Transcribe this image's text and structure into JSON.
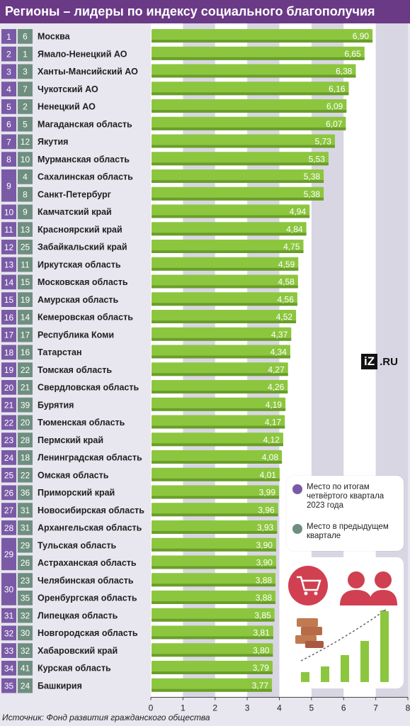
{
  "title": "Регионы – лидеры по индексу социального благополучия",
  "source": "Источник: Фонд развития гражданского общества",
  "logo": {
    "mark": "iZ",
    "suffix": ".RU"
  },
  "legend": [
    {
      "label": "Место по итогам четвёртого квартала 2023 года",
      "color": "#7a5aa6"
    },
    {
      "label": "Место в предыдущем квартале",
      "color": "#6e8f7f"
    }
  ],
  "colors": {
    "bar": "#8cc63f",
    "bar_dark": "#6a9e2a",
    "rank_current": "#7a5aa6",
    "rank_prev": "#6e8f7f",
    "band": "#d9d6e3",
    "title_bg": "#6b3a86"
  },
  "illustration": {
    "icons": [
      "shopping-cart-icon",
      "man-icon",
      "woman-icon",
      "money-stack-icon",
      "growth-bars-icon"
    ]
  },
  "chart_data": {
    "type": "bar",
    "orientation": "horizontal",
    "title": "Регионы – лидеры по индексу социального благополучия",
    "xlim": [
      0,
      8
    ],
    "xticks": [
      "0",
      "1",
      "2",
      "3",
      "4",
      "5",
      "6",
      "7",
      "8"
    ],
    "rows": [
      {
        "rank": "1",
        "prev": "6",
        "region": "Москва",
        "value": 6.9,
        "label": "6,90"
      },
      {
        "rank": "2",
        "prev": "1",
        "region": "Ямало-Ненецкий АО",
        "value": 6.65,
        "label": "6,65"
      },
      {
        "rank": "3",
        "prev": "3",
        "region": "Ханты-Мансийский АО",
        "value": 6.38,
        "label": "6,38"
      },
      {
        "rank": "4",
        "prev": "7",
        "region": "Чукотский АО",
        "value": 6.16,
        "label": "6,16"
      },
      {
        "rank": "5",
        "prev": "2",
        "region": "Ненецкий АО",
        "value": 6.09,
        "label": "6,09"
      },
      {
        "rank": "6",
        "prev": "5",
        "region": "Магаданская область",
        "value": 6.07,
        "label": "6,07"
      },
      {
        "rank": "7",
        "prev": "12",
        "region": "Якутия",
        "value": 5.73,
        "label": "5,73"
      },
      {
        "rank": "8",
        "prev": "10",
        "region": "Мурманская область",
        "value": 5.53,
        "label": "5,53"
      },
      {
        "rank": "9",
        "prev": "4",
        "region": "Сахалинская область",
        "value": 5.38,
        "label": "5,38"
      },
      {
        "rank": "",
        "prev": "8",
        "region": "Санкт-Петербург",
        "value": 5.38,
        "label": "5,38"
      },
      {
        "rank": "10",
        "prev": "9",
        "region": "Камчатский край",
        "value": 4.94,
        "label": "4,94"
      },
      {
        "rank": "11",
        "prev": "13",
        "region": "Красноярский край",
        "value": 4.84,
        "label": "4,84"
      },
      {
        "rank": "12",
        "prev": "25",
        "region": "Забайкальский край",
        "value": 4.75,
        "label": "4,75"
      },
      {
        "rank": "13",
        "prev": "11",
        "region": "Иркутская область",
        "value": 4.59,
        "label": "4,59"
      },
      {
        "rank": "14",
        "prev": "15",
        "region": "Московская область",
        "value": 4.58,
        "label": "4,58"
      },
      {
        "rank": "15",
        "prev": "19",
        "region": "Амурская область",
        "value": 4.56,
        "label": "4,56"
      },
      {
        "rank": "16",
        "prev": "14",
        "region": "Кемеровская область",
        "value": 4.52,
        "label": "4,52"
      },
      {
        "rank": "17",
        "prev": "17",
        "region": "Республика Коми",
        "value": 4.37,
        "label": "4,37"
      },
      {
        "rank": "18",
        "prev": "16",
        "region": "Татарстан",
        "value": 4.34,
        "label": "4,34"
      },
      {
        "rank": "19",
        "prev": "22",
        "region": "Томская область",
        "value": 4.27,
        "label": "4,27"
      },
      {
        "rank": "20",
        "prev": "21",
        "region": "Свердловская область",
        "value": 4.26,
        "label": "4,26"
      },
      {
        "rank": "21",
        "prev": "39",
        "region": "Бурятия",
        "value": 4.19,
        "label": "4,19"
      },
      {
        "rank": "22",
        "prev": "20",
        "region": "Тюменская область",
        "value": 4.17,
        "label": "4,17"
      },
      {
        "rank": "23",
        "prev": "28",
        "region": "Пермский край",
        "value": 4.12,
        "label": "4,12"
      },
      {
        "rank": "24",
        "prev": "18",
        "region": "Ленинградская область",
        "value": 4.08,
        "label": "4,08"
      },
      {
        "rank": "25",
        "prev": "22",
        "region": "Омская область",
        "value": 4.01,
        "label": "4,01"
      },
      {
        "rank": "26",
        "prev": "36",
        "region": "Приморский край",
        "value": 3.99,
        "label": "3,99"
      },
      {
        "rank": "27",
        "prev": "31",
        "region": "Новосибирская область",
        "value": 3.96,
        "label": "3,96"
      },
      {
        "rank": "28",
        "prev": "31",
        "region": "Архангельская область",
        "value": 3.93,
        "label": "3,93"
      },
      {
        "rank": "29",
        "prev": "29",
        "region": "Тульская область",
        "value": 3.9,
        "label": "3,90"
      },
      {
        "rank": "",
        "prev": "26",
        "region": "Астраханская область",
        "value": 3.9,
        "label": "3,90"
      },
      {
        "rank": "30",
        "prev": "23",
        "region": "Челябинская область",
        "value": 3.88,
        "label": "3,88"
      },
      {
        "rank": "",
        "prev": "35",
        "region": "Оренбургская область",
        "value": 3.88,
        "label": "3,88"
      },
      {
        "rank": "31",
        "prev": "32",
        "region": "Липецкая область",
        "value": 3.85,
        "label": "3,85"
      },
      {
        "rank": "32",
        "prev": "30",
        "region": "Новгородская область",
        "value": 3.81,
        "label": "3,81"
      },
      {
        "rank": "33",
        "prev": "32",
        "region": "Хабаровский край",
        "value": 3.8,
        "label": "3,80"
      },
      {
        "rank": "34",
        "prev": "41",
        "region": "Курская область",
        "value": 3.79,
        "label": "3,79"
      },
      {
        "rank": "35",
        "prev": "24",
        "region": "Башкирия",
        "value": 3.77,
        "label": "3,77"
      }
    ]
  }
}
